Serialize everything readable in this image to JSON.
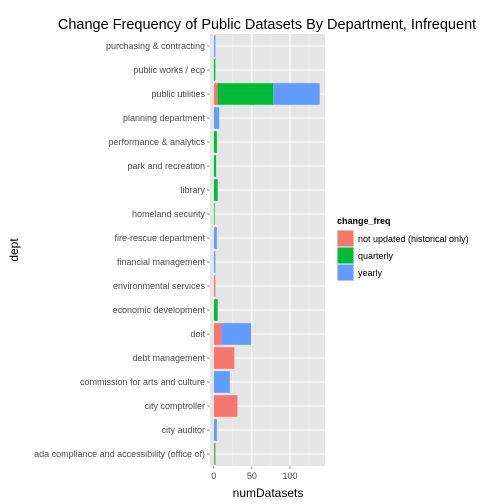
{
  "chart_data": {
    "type": "bar",
    "orientation": "horizontal",
    "stacked": true,
    "title": "Change Frequency of Public Datasets By Department, Infrequent",
    "xlabel": "numDatasets",
    "ylabel": "dept",
    "xlim": [
      -5,
      146
    ],
    "x_ticks": [
      0,
      50,
      100
    ],
    "grid": true,
    "legend_position": "right",
    "legend_title": "change_freq",
    "categories": [
      "purchasing & contracting",
      "public works / ecp",
      "public utilities",
      "planning department",
      "performance & analytics",
      "park and recreation",
      "library",
      "homeland security",
      "fire-rescue department",
      "financial management",
      "environmental services",
      "economic development",
      "doit",
      "debt management",
      "commission for arts and culture",
      "city comptroller",
      "city auditor",
      "ada compliance and accessibility (office of)"
    ],
    "series": [
      {
        "name": "not updated (historical only)",
        "color": "#F8766D",
        "values": [
          0,
          0,
          5,
          0,
          0,
          0,
          0,
          0,
          0,
          0,
          2,
          0,
          10,
          27,
          0,
          31,
          0,
          1
        ]
      },
      {
        "name": "quarterly",
        "color": "#00BA38",
        "values": [
          0,
          2,
          73,
          0,
          4,
          3,
          5,
          1,
          0,
          0,
          0,
          5,
          0,
          0,
          0,
          0,
          0,
          1
        ]
      },
      {
        "name": "yearly",
        "color": "#619CFF",
        "values": [
          2,
          0,
          61,
          7,
          0,
          0,
          0,
          0,
          4,
          2,
          0,
          0,
          39,
          0,
          21,
          0,
          4,
          0
        ]
      }
    ]
  }
}
